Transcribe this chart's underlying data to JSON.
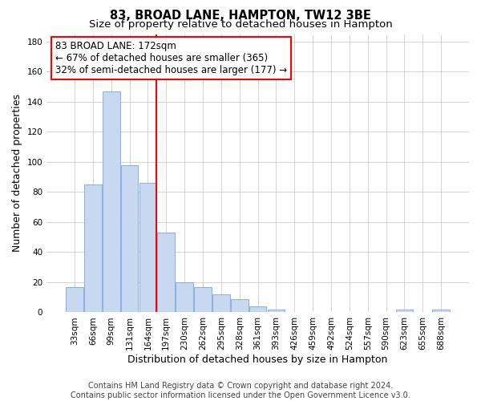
{
  "title": "83, BROAD LANE, HAMPTON, TW12 3BE",
  "subtitle": "Size of property relative to detached houses in Hampton",
  "xlabel": "Distribution of detached houses by size in Hampton",
  "ylabel": "Number of detached properties",
  "bar_color": "#c8d8f0",
  "bar_edge_color": "#7aa8d8",
  "reference_line_color": "red",
  "reference_line_index": 4,
  "annotation_line1": "83 BROAD LANE: 172sqm",
  "annotation_line2": "← 67% of detached houses are smaller (365)",
  "annotation_line3": "32% of semi-detached houses are larger (177) →",
  "categories": [
    "33sqm",
    "66sqm",
    "99sqm",
    "131sqm",
    "164sqm",
    "197sqm",
    "230sqm",
    "262sqm",
    "295sqm",
    "328sqm",
    "361sqm",
    "393sqm",
    "426sqm",
    "459sqm",
    "492sqm",
    "524sqm",
    "557sqm",
    "590sqm",
    "623sqm",
    "655sqm",
    "688sqm"
  ],
  "values": [
    17,
    85,
    147,
    98,
    86,
    53,
    20,
    17,
    12,
    9,
    4,
    2,
    0,
    0,
    0,
    0,
    0,
    0,
    2,
    0,
    2
  ],
  "ylim": [
    0,
    185
  ],
  "yticks": [
    0,
    20,
    40,
    60,
    80,
    100,
    120,
    140,
    160,
    180
  ],
  "footer1": "Contains HM Land Registry data © Crown copyright and database right 2024.",
  "footer2": "Contains public sector information licensed under the Open Government Licence v3.0.",
  "background_color": "#ffffff",
  "plot_bg_color": "#ffffff",
  "grid_color": "#cccccc",
  "title_fontsize": 10.5,
  "subtitle_fontsize": 9.5,
  "axis_label_fontsize": 9,
  "tick_fontsize": 7.5,
  "annotation_fontsize": 8.5,
  "footer_fontsize": 7
}
